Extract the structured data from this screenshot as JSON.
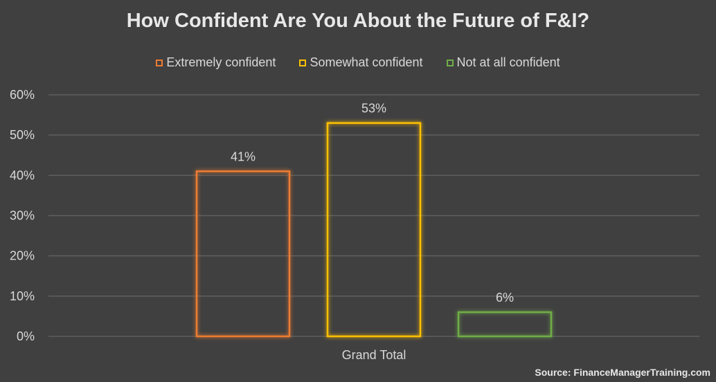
{
  "chart_data": {
    "type": "bar",
    "title": "How Confident Are You About the Future of F&I?",
    "categories": [
      "Grand Total"
    ],
    "series": [
      {
        "name": "Extremely confident",
        "values": [
          41
        ],
        "label": "41%",
        "color": "#ed7d31"
      },
      {
        "name": "Somewhat confident",
        "values": [
          53
        ],
        "label": "53%",
        "color": "#ffc000"
      },
      {
        "name": "Not at all confident",
        "values": [
          6
        ],
        "label": "6%",
        "color": "#70ad47"
      }
    ],
    "y_ticks": [
      "0%",
      "10%",
      "20%",
      "30%",
      "40%",
      "50%",
      "60%"
    ],
    "ylim": [
      0,
      60
    ],
    "xlabel": "",
    "ylabel": "",
    "grid": true,
    "legend_position": "top"
  },
  "source": "Source: FinanceManagerTraining.com",
  "colors": {
    "background": "#404040",
    "gridline": "#5f5f5f",
    "text": "#d9d9d9"
  }
}
